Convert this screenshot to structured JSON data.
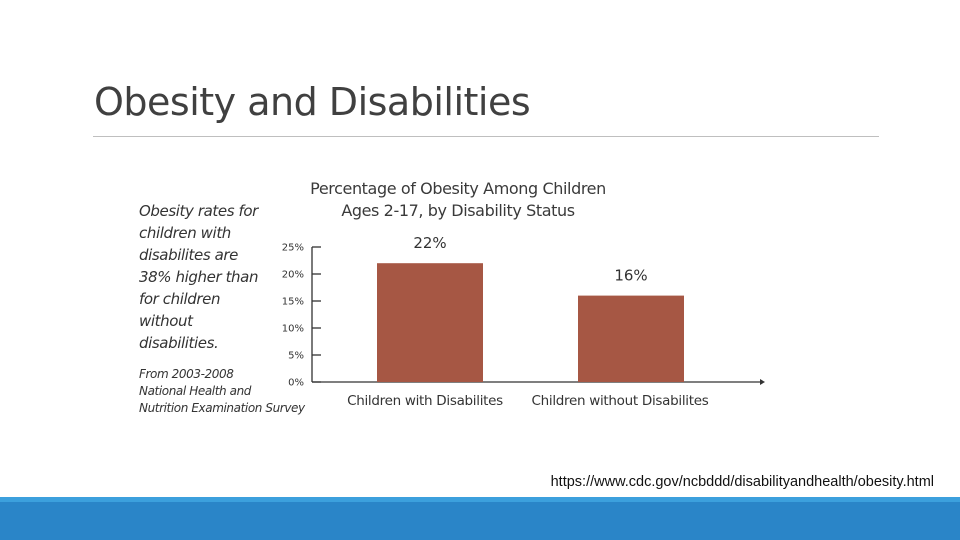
{
  "slide": {
    "title": "Obesity and Disabilities",
    "url": "https://www.cdc.gov/ncbddd/disabilityandhealth/obesity.html"
  },
  "side_note": {
    "lines": [
      "Obesity rates for",
      "children with",
      "disabilites are",
      "38% higher than",
      "for children",
      "without",
      "disabilities."
    ]
  },
  "source_note": {
    "lines": [
      "From 2003-2008",
      "National Health and",
      "Nutrition Examination Survey"
    ]
  },
  "colors": {
    "bar": "#a65744",
    "footer_band": "#2a85c8",
    "footer_thin": "#3ca0dd"
  },
  "chart_data": {
    "type": "bar",
    "title": [
      "Percentage of Obesity Among Children",
      "Ages 2-17, by Disability Status"
    ],
    "categories": [
      "Children with Disabilites",
      "Children without Disabilites"
    ],
    "values": [
      22,
      16
    ],
    "value_labels": [
      "22%",
      "16%"
    ],
    "yticks": [
      0,
      5,
      10,
      15,
      20,
      25
    ],
    "ytick_labels": [
      "0%",
      "5%",
      "10%",
      "15%",
      "20%",
      "25%"
    ],
    "ylim": [
      0,
      25
    ],
    "grid": false,
    "legend": "none",
    "xlabel": "",
    "ylabel": ""
  }
}
